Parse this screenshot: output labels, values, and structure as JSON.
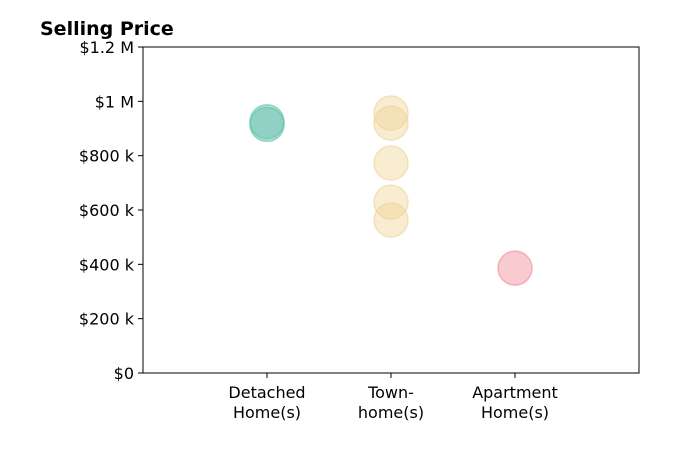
{
  "chart_data": {
    "type": "strip",
    "title": "Selling Price",
    "categories": [
      [
        "Detached",
        "Home(s)"
      ],
      [
        "Town-",
        "home(s)"
      ],
      [
        "Apartment",
        "Home(s)"
      ]
    ],
    "colors": [
      "#5fbfaa",
      "#efd49a",
      "#f08c98"
    ],
    "values": [
      [
        925000,
        915000
      ],
      [
        957000,
        920000,
        773000,
        629000,
        563000
      ],
      [
        386000
      ]
    ],
    "ylim": [
      0,
      1200000
    ],
    "yticks": [
      {
        "value": 0,
        "label": "$0"
      },
      {
        "value": 200000,
        "label": "$200 k"
      },
      {
        "value": 400000,
        "label": "$400 k"
      },
      {
        "value": 600000,
        "label": "$600 k"
      },
      {
        "value": 800000,
        "label": "$800 k"
      },
      {
        "value": 1000000,
        "label": "$1 M"
      },
      {
        "value": 1200000,
        "label": "$1.2 M"
      }
    ]
  }
}
